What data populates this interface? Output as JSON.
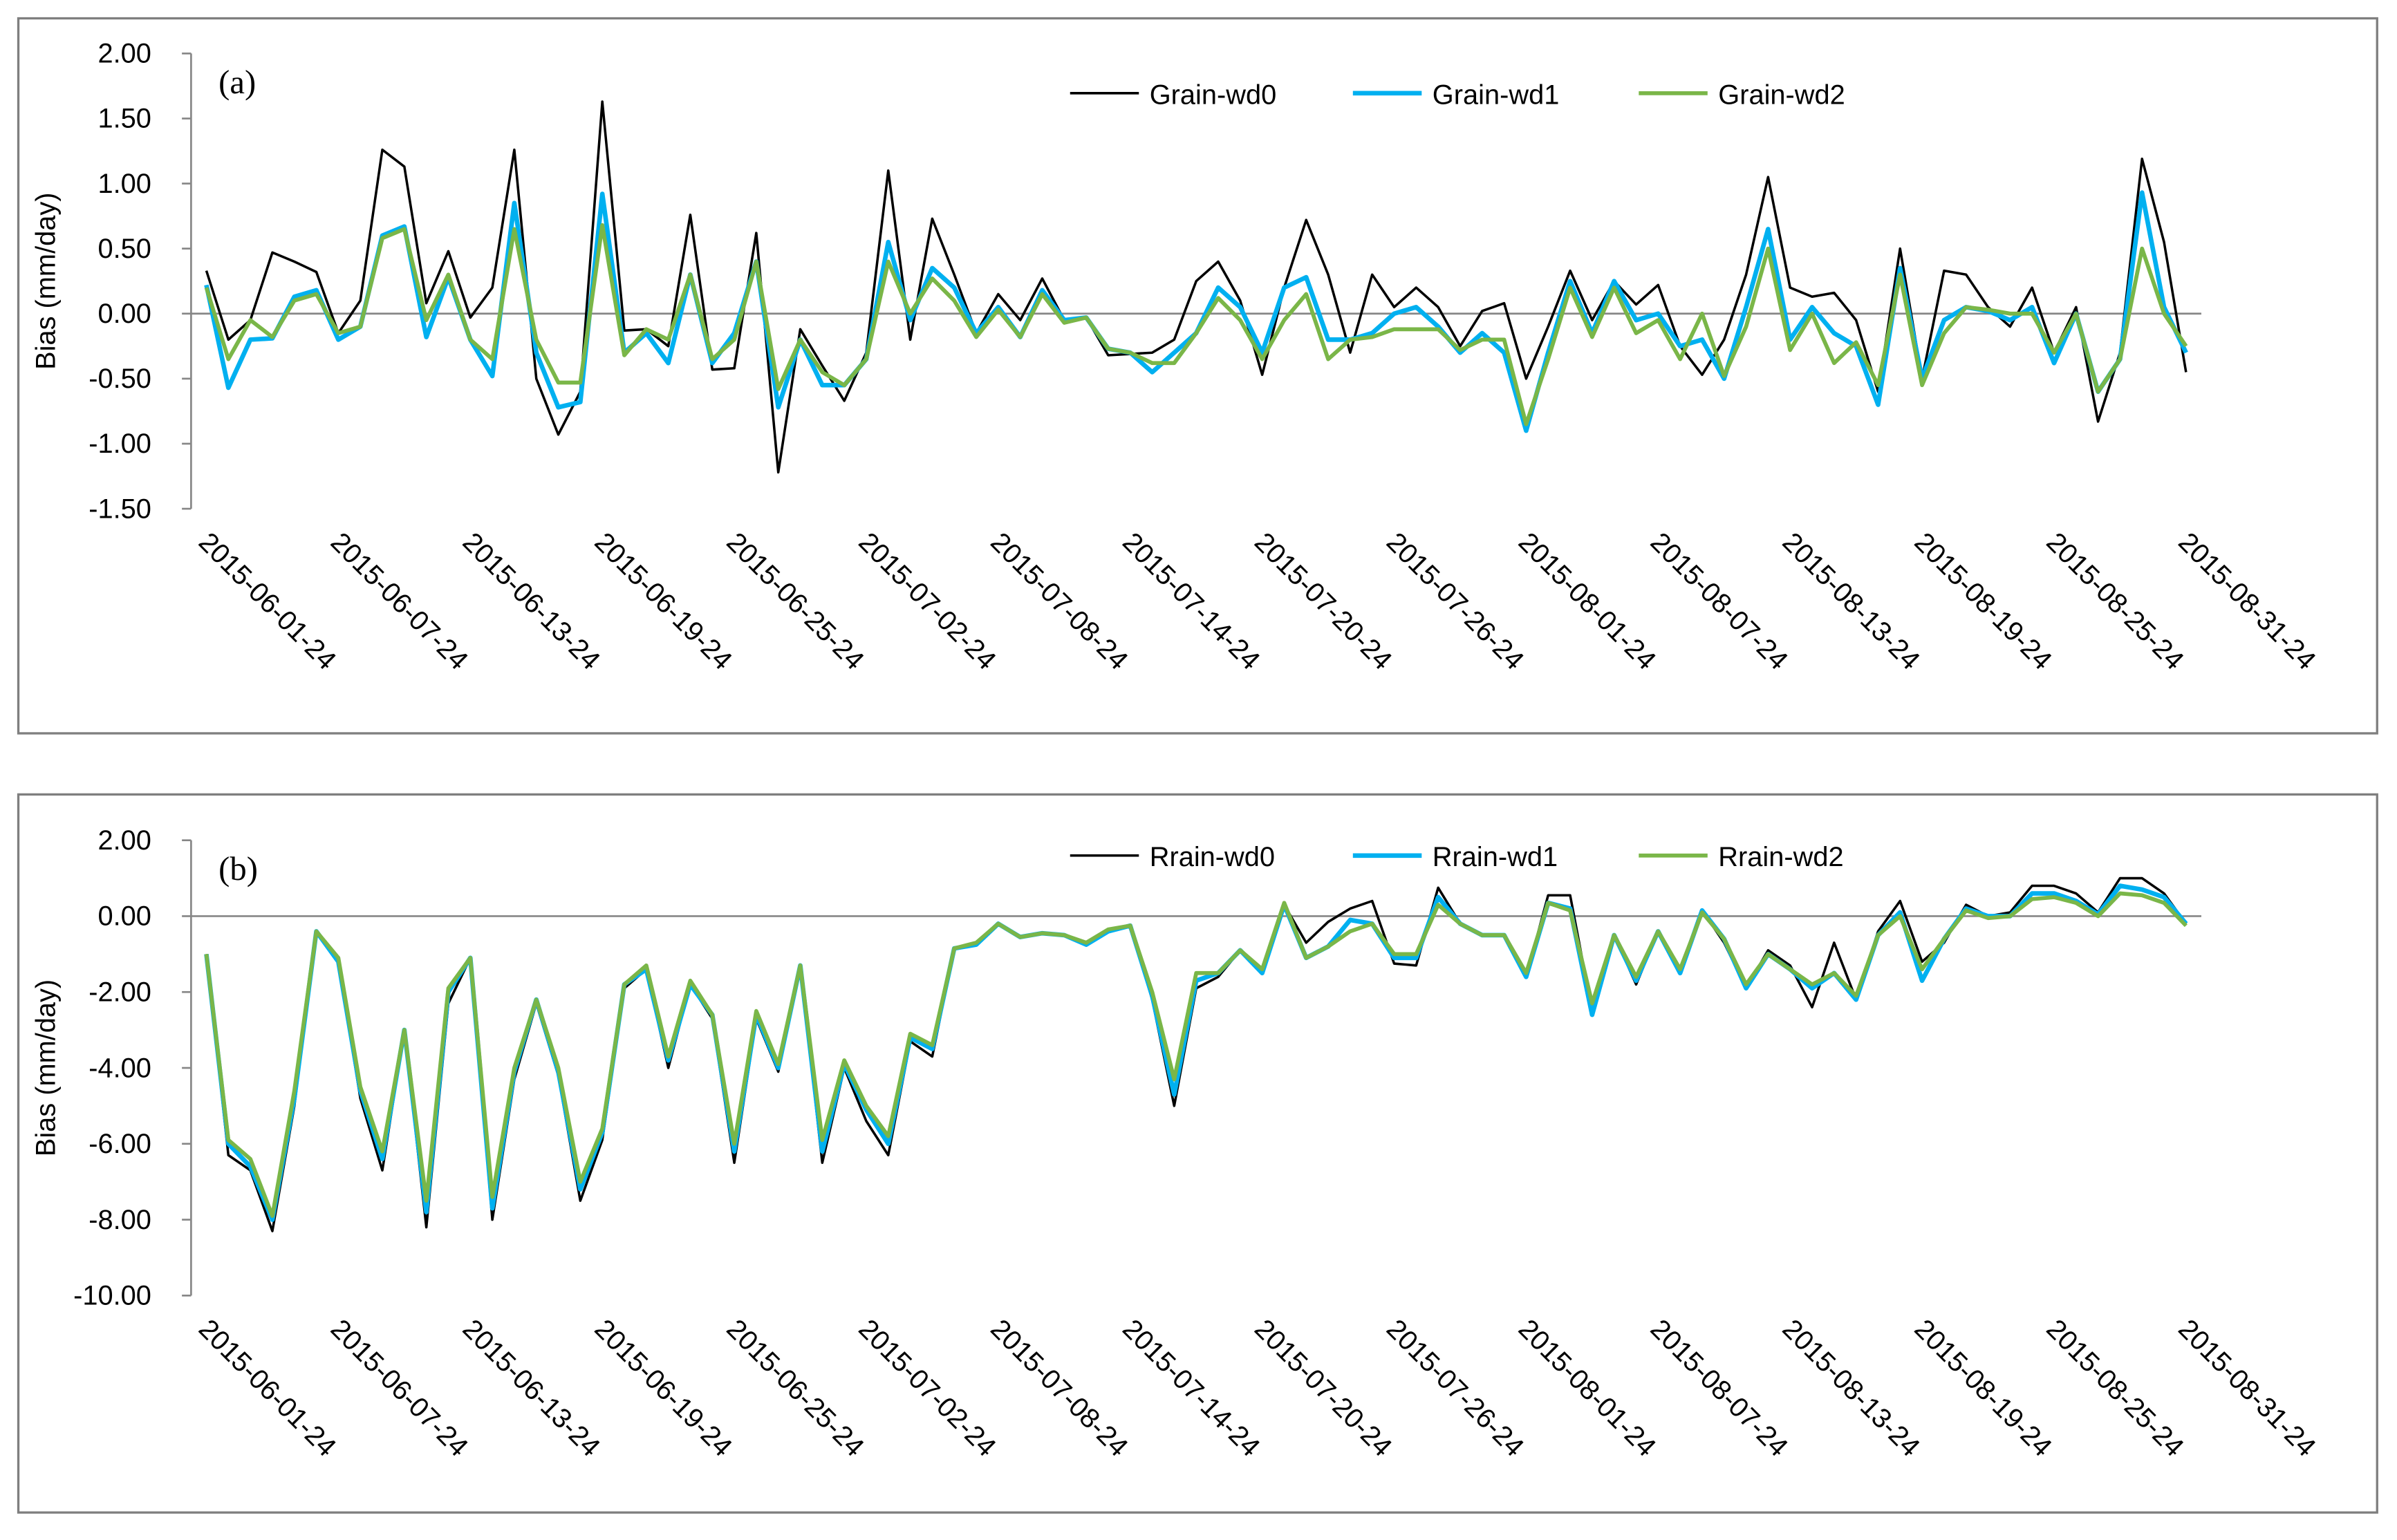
{
  "chart_data": [
    {
      "type": "line",
      "panel_label": "(a)",
      "y_label": "Bias (mm/day)",
      "categories": [
        "2015-06-01-24",
        null,
        null,
        null,
        null,
        null,
        "2015-06-07-24",
        null,
        null,
        null,
        null,
        null,
        "2015-06-13-24",
        null,
        null,
        null,
        null,
        null,
        "2015-06-19-24",
        null,
        null,
        null,
        null,
        null,
        "2015-06-25-24",
        null,
        null,
        null,
        null,
        null,
        "2015-07-02-24",
        null,
        null,
        null,
        null,
        null,
        "2015-07-08-24",
        null,
        null,
        null,
        null,
        null,
        "2015-07-14-24",
        null,
        null,
        null,
        null,
        null,
        "2015-07-20-24",
        null,
        null,
        null,
        null,
        null,
        "2015-07-26-24",
        null,
        null,
        null,
        null,
        null,
        "2015-08-01-24",
        null,
        null,
        null,
        null,
        null,
        "2015-08-07-24",
        null,
        null,
        null,
        null,
        null,
        "2015-08-13-24",
        null,
        null,
        null,
        null,
        null,
        "2015-08-19-24",
        null,
        null,
        null,
        null,
        null,
        "2015-08-25-24",
        null,
        null,
        null,
        null,
        null,
        "2015-08-31-24"
      ],
      "series": [
        {
          "name": "Grain-wd0",
          "color": "#000000",
          "values": [
            0.33,
            -0.2,
            -0.05,
            0.47,
            0.4,
            0.32,
            -0.15,
            0.1,
            1.26,
            1.13,
            0.08,
            0.48,
            -0.03,
            0.2,
            1.26,
            -0.5,
            -0.93,
            -0.6,
            1.63,
            -0.13,
            -0.12,
            -0.25,
            0.76,
            -0.43,
            -0.42,
            0.62,
            -1.22,
            -0.12,
            -0.4,
            -0.67,
            -0.3,
            1.1,
            -0.2,
            0.73,
            0.3,
            -0.15,
            0.15,
            -0.05,
            0.27,
            -0.05,
            -0.03,
            -0.32,
            -0.31,
            -0.3,
            -0.2,
            0.25,
            0.4,
            0.1,
            -0.47,
            0.2,
            0.72,
            0.3,
            -0.3,
            0.3,
            0.05,
            0.2,
            0.05,
            -0.25,
            0.02,
            0.08,
            -0.5,
            -0.1,
            0.33,
            -0.05,
            0.25,
            0.07,
            0.22,
            -0.25,
            -0.47,
            -0.2,
            0.3,
            1.05,
            0.2,
            0.13,
            0.16,
            -0.05,
            -0.6,
            0.5,
            -0.5,
            0.33,
            0.3,
            0.05,
            -0.1,
            0.2,
            -0.3,
            0.05,
            -0.83,
            -0.3,
            1.19,
            0.55,
            -0.45
          ]
        },
        {
          "name": "Grain-wd1",
          "color": "#00b0f0",
          "values": [
            0.22,
            -0.57,
            -0.2,
            -0.19,
            0.13,
            0.18,
            -0.2,
            -0.1,
            0.6,
            0.67,
            -0.18,
            0.28,
            -0.2,
            -0.48,
            0.85,
            -0.3,
            -0.72,
            -0.68,
            0.92,
            -0.3,
            -0.15,
            -0.38,
            0.3,
            -0.38,
            -0.15,
            0.4,
            -0.72,
            -0.2,
            -0.55,
            -0.55,
            -0.35,
            0.55,
            -0.05,
            0.35,
            0.2,
            -0.15,
            0.05,
            -0.18,
            0.18,
            -0.05,
            -0.03,
            -0.27,
            -0.3,
            -0.45,
            -0.3,
            -0.15,
            0.2,
            0.05,
            -0.3,
            0.2,
            0.28,
            -0.2,
            -0.2,
            -0.15,
            0.0,
            0.05,
            -0.1,
            -0.3,
            -0.15,
            -0.3,
            -0.9,
            -0.3,
            0.25,
            -0.15,
            0.25,
            -0.05,
            0.0,
            -0.25,
            -0.2,
            -0.5,
            0.05,
            0.65,
            -0.2,
            0.05,
            -0.15,
            -0.25,
            -0.7,
            0.35,
            -0.5,
            -0.05,
            0.05,
            0.02,
            -0.05,
            0.05,
            -0.38,
            0.0,
            -0.6,
            -0.35,
            0.93,
            0.05,
            -0.3
          ]
        },
        {
          "name": "Grain-wd2",
          "color": "#7ab648",
          "values": [
            0.2,
            -0.35,
            -0.05,
            -0.18,
            0.1,
            0.15,
            -0.15,
            -0.1,
            0.58,
            0.65,
            -0.05,
            0.3,
            -0.2,
            -0.35,
            0.65,
            -0.2,
            -0.53,
            -0.53,
            0.68,
            -0.32,
            -0.12,
            -0.2,
            0.3,
            -0.35,
            -0.2,
            0.4,
            -0.58,
            -0.2,
            -0.45,
            -0.55,
            -0.35,
            0.4,
            0.0,
            0.27,
            0.1,
            -0.18,
            0.03,
            -0.18,
            0.15,
            -0.07,
            -0.03,
            -0.27,
            -0.3,
            -0.38,
            -0.38,
            -0.15,
            0.12,
            -0.05,
            -0.35,
            -0.05,
            0.15,
            -0.35,
            -0.2,
            -0.18,
            -0.12,
            -0.12,
            -0.12,
            -0.28,
            -0.2,
            -0.2,
            -0.85,
            -0.35,
            0.2,
            -0.18,
            0.2,
            -0.15,
            -0.05,
            -0.35,
            0.0,
            -0.48,
            -0.1,
            0.5,
            -0.28,
            0.0,
            -0.38,
            -0.22,
            -0.55,
            0.3,
            -0.55,
            -0.15,
            0.05,
            0.03,
            0.0,
            0.0,
            -0.3,
            0.0,
            -0.6,
            -0.35,
            0.5,
            0.0,
            -0.25
          ]
        }
      ],
      "ylim": [
        -1.5,
        2
      ],
      "yticks": [
        {
          "value": -1.5,
          "label": "-1.50"
        },
        {
          "value": -1,
          "label": "-1.00"
        },
        {
          "value": -0.5,
          "label": "-0.50"
        },
        {
          "value": 0,
          "label": "0.00"
        },
        {
          "value": 0.5,
          "label": "0.50"
        },
        {
          "value": 1,
          "label": "1.00"
        },
        {
          "value": 1.5,
          "label": "1.50"
        },
        {
          "value": 2,
          "label": "2.00"
        }
      ],
      "legend": "upper right"
    },
    {
      "type": "line",
      "panel_label": "(b)",
      "y_label": "Bias (mm/day)",
      "categories": [
        "2015-06-01-24",
        null,
        null,
        null,
        null,
        null,
        "2015-06-07-24",
        null,
        null,
        null,
        null,
        null,
        "2015-06-13-24",
        null,
        null,
        null,
        null,
        null,
        "2015-06-19-24",
        null,
        null,
        null,
        null,
        null,
        "2015-06-25-24",
        null,
        null,
        null,
        null,
        null,
        "2015-07-02-24",
        null,
        null,
        null,
        null,
        null,
        "2015-07-08-24",
        null,
        null,
        null,
        null,
        null,
        "2015-07-14-24",
        null,
        null,
        null,
        null,
        null,
        "2015-07-20-24",
        null,
        null,
        null,
        null,
        null,
        "2015-07-26-24",
        null,
        null,
        null,
        null,
        null,
        "2015-08-01-24",
        null,
        null,
        null,
        null,
        null,
        "2015-08-07-24",
        null,
        null,
        null,
        null,
        null,
        "2015-08-13-24",
        null,
        null,
        null,
        null,
        null,
        "2015-08-19-24",
        null,
        null,
        null,
        null,
        null,
        "2015-08-25-24",
        null,
        null,
        null,
        null,
        null,
        "2015-08-31-24"
      ],
      "series": [
        {
          "name": "Rrain-wd0",
          "color": "#000000",
          "values": [
            -1.0,
            -6.3,
            -6.7,
            -8.3,
            -5.0,
            -0.4,
            -1.2,
            -4.8,
            -6.7,
            -3.0,
            -8.2,
            -2.3,
            -1.1,
            -8.0,
            -4.3,
            -2.3,
            -4.2,
            -7.5,
            -5.9,
            -1.9,
            -1.4,
            -4.0,
            -1.8,
            -2.7,
            -6.5,
            -2.7,
            -4.1,
            -1.3,
            -6.5,
            -4.0,
            -5.4,
            -6.3,
            -3.3,
            -3.7,
            -0.85,
            -0.75,
            -0.2,
            -0.55,
            -0.45,
            -0.5,
            -0.75,
            -0.4,
            -0.25,
            -2.2,
            -5.0,
            -1.9,
            -1.6,
            -0.9,
            -1.5,
            0.3,
            -0.7,
            -0.15,
            0.2,
            0.4,
            -1.25,
            -1.3,
            0.75,
            -0.2,
            -0.5,
            -0.5,
            -1.6,
            0.55,
            0.55,
            -2.5,
            -0.5,
            -1.8,
            -0.4,
            -1.4,
            0.15,
            -0.7,
            -1.9,
            -0.9,
            -1.3,
            -2.4,
            -0.7,
            -2.2,
            -0.4,
            0.4,
            -1.2,
            -0.7,
            0.3,
            0.0,
            0.1,
            0.8,
            0.8,
            0.6,
            0.1,
            1.0,
            1.0,
            0.6,
            -0.2
          ]
        },
        {
          "name": "Rrain-wd1",
          "color": "#00b0f0",
          "values": [
            -1.0,
            -6.0,
            -6.6,
            -8.0,
            -4.8,
            -0.4,
            -1.2,
            -4.6,
            -6.4,
            -3.0,
            -7.8,
            -2.0,
            -1.1,
            -7.7,
            -4.1,
            -2.2,
            -4.1,
            -7.2,
            -5.7,
            -1.8,
            -1.4,
            -3.8,
            -1.8,
            -2.6,
            -6.2,
            -2.6,
            -4.0,
            -1.3,
            -6.2,
            -3.9,
            -5.1,
            -6.0,
            -3.2,
            -3.5,
            -0.85,
            -0.75,
            -0.2,
            -0.55,
            -0.45,
            -0.5,
            -0.75,
            -0.4,
            -0.25,
            -2.1,
            -4.7,
            -1.7,
            -1.5,
            -0.9,
            -1.5,
            0.3,
            -1.1,
            -0.8,
            -0.1,
            -0.2,
            -1.1,
            -1.1,
            0.5,
            -0.2,
            -0.5,
            -0.5,
            -1.6,
            0.35,
            0.2,
            -2.6,
            -0.5,
            -1.7,
            -0.4,
            -1.5,
            0.15,
            -0.6,
            -1.9,
            -1.0,
            -1.4,
            -1.9,
            -1.5,
            -2.2,
            -0.5,
            0.1,
            -1.7,
            -0.6,
            0.2,
            0.0,
            0.0,
            0.6,
            0.6,
            0.4,
            0.05,
            0.8,
            0.7,
            0.5,
            -0.2
          ]
        },
        {
          "name": "Rrain-wd2",
          "color": "#7ab648",
          "values": [
            -1.0,
            -5.9,
            -6.4,
            -7.9,
            -4.6,
            -0.4,
            -1.1,
            -4.5,
            -6.2,
            -3.0,
            -7.5,
            -1.9,
            -1.1,
            -7.4,
            -4.0,
            -2.2,
            -4.0,
            -7.0,
            -5.6,
            -1.8,
            -1.3,
            -3.7,
            -1.7,
            -2.6,
            -6.0,
            -2.5,
            -3.9,
            -1.3,
            -5.9,
            -3.8,
            -5.0,
            -5.8,
            -3.1,
            -3.4,
            -0.85,
            -0.7,
            -0.2,
            -0.55,
            -0.45,
            -0.5,
            -0.7,
            -0.35,
            -0.25,
            -2.0,
            -4.3,
            -1.5,
            -1.5,
            -0.9,
            -1.4,
            0.35,
            -1.1,
            -0.8,
            -0.4,
            -0.2,
            -1.0,
            -1.0,
            0.3,
            -0.2,
            -0.5,
            -0.5,
            -1.5,
            0.35,
            0.15,
            -2.3,
            -0.5,
            -1.6,
            -0.4,
            -1.4,
            0.1,
            -0.6,
            -1.8,
            -1.0,
            -1.4,
            -1.8,
            -1.5,
            -2.1,
            -0.5,
            0.0,
            -1.4,
            -0.6,
            0.15,
            -0.05,
            0.0,
            0.45,
            0.5,
            0.35,
            0.0,
            0.6,
            0.55,
            0.35,
            -0.25
          ]
        }
      ],
      "ylim": [
        -10,
        2
      ],
      "yticks": [
        {
          "value": -10,
          "label": "-10.00"
        },
        {
          "value": -8,
          "label": "-8.00"
        },
        {
          "value": -6,
          "label": "-6.00"
        },
        {
          "value": -4,
          "label": "-4.00"
        },
        {
          "value": -2,
          "label": "-2.00"
        },
        {
          "value": 0,
          "label": "0.00"
        },
        {
          "value": 2,
          "label": "2.00"
        }
      ],
      "legend": "upper right"
    }
  ]
}
